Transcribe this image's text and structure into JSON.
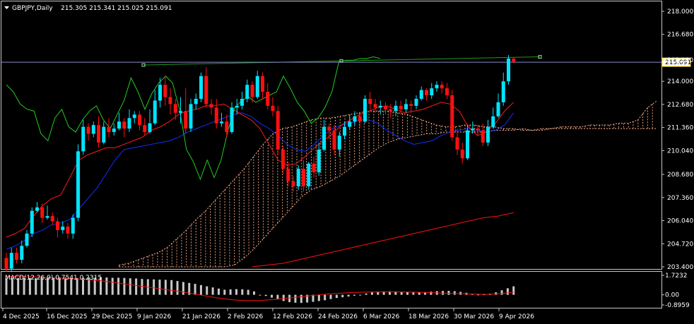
{
  "header": {
    "symbol": "GBPJPY,Daily",
    "ohlc": "215.305 215.341 215.025 215.091",
    "macd_label": "MACD(12,26,9) 0.7541 0.2315"
  },
  "colors": {
    "background": "#000000",
    "frame": "#c8c8c8",
    "bull": "#00e5ff",
    "bear": "#ff1010",
    "tenkan": "#ff1a1a",
    "kijun": "#1030ff",
    "chikou": "#22cc22",
    "cloud": "#ffb08a",
    "trendline": "#1f9a1f",
    "price_line": "#8a8ac8",
    "price_tag": "#ffd700",
    "macd_hist": "#c8c8c8",
    "macd_signal": "#ff1010",
    "ma200": "#ff1010"
  },
  "chart_data": [
    {
      "type": "candlestick",
      "title": "GBPJPY,Daily",
      "ylim": [
        203.4,
        218.0
      ],
      "y_ticks": [
        "218.000",
        "216.680",
        "215.220",
        "214.000",
        "212.680",
        "211.360",
        "210.040",
        "208.680",
        "207.360",
        "206.040",
        "204.720",
        "203.400"
      ],
      "current_price": "215.091",
      "x_ticks": [
        "4 Dec 2025",
        "16 Dec 2025",
        "29 Dec 2025",
        "9 Jan 2026",
        "21 Jan 2026",
        "2 Feb 2026",
        "12 Feb 2026",
        "24 Feb 2026",
        "6 Mar 2026",
        "18 Mar 2026",
        "30 Mar 2026",
        "9 Apr 2026"
      ],
      "candles": [
        [
          203.9,
          203.3,
          204.2,
          203.1
        ],
        [
          203.3,
          204.2,
          204.5,
          203.1
        ],
        [
          204.2,
          203.8,
          204.5,
          203.6
        ],
        [
          203.8,
          204.6,
          204.9,
          203.6
        ],
        [
          204.6,
          205.3,
          205.5,
          204.5
        ],
        [
          205.3,
          206.6,
          206.8,
          205.1
        ],
        [
          206.6,
          206.8,
          207.1,
          206.5
        ],
        [
          206.8,
          206.2,
          207.0,
          205.9
        ],
        [
          206.2,
          206.3,
          206.9,
          206.1
        ],
        [
          206.3,
          206.0,
          206.5,
          205.8
        ],
        [
          206.0,
          205.5,
          206.2,
          205.1
        ],
        [
          205.5,
          205.7,
          206.0,
          205.3
        ],
        [
          205.7,
          205.3,
          205.9,
          205.0
        ],
        [
          205.3,
          206.2,
          206.4,
          205.0
        ],
        [
          206.2,
          210.0,
          210.4,
          206.0
        ],
        [
          210.0,
          211.4,
          211.8,
          209.8
        ],
        [
          211.4,
          211.0,
          211.6,
          210.6
        ],
        [
          211.0,
          211.5,
          211.7,
          210.8
        ],
        [
          211.5,
          210.5,
          212.0,
          210.2
        ],
        [
          210.5,
          211.4,
          211.7,
          210.4
        ],
        [
          211.4,
          211.1,
          211.9,
          210.8
        ],
        [
          211.1,
          211.3,
          211.6,
          210.9
        ],
        [
          211.3,
          211.7,
          212.2,
          211.2
        ],
        [
          211.7,
          211.3,
          211.9,
          210.8
        ],
        [
          211.3,
          211.9,
          212.4,
          211.1
        ],
        [
          211.9,
          212.1,
          212.3,
          211.6
        ],
        [
          212.1,
          211.5,
          212.3,
          211.2
        ],
        [
          211.5,
          211.1,
          211.9,
          210.9
        ],
        [
          211.1,
          211.6,
          212.4,
          211.0
        ],
        [
          211.6,
          212.9,
          213.5,
          211.5
        ],
        [
          212.9,
          213.8,
          214.2,
          212.5
        ],
        [
          213.8,
          213.1,
          214.3,
          212.6
        ],
        [
          213.1,
          212.7,
          213.6,
          212.1
        ],
        [
          212.7,
          212.2,
          213.0,
          211.8
        ],
        [
          212.2,
          212.3,
          213.1,
          211.6
        ],
        [
          212.3,
          211.3,
          213.6,
          211.0
        ],
        [
          211.3,
          212.7,
          213.0,
          211.1
        ],
        [
          212.7,
          213.0,
          213.3,
          212.4
        ],
        [
          213.0,
          214.3,
          214.5,
          212.8
        ],
        [
          214.3,
          212.7,
          214.8,
          212.5
        ],
        [
          212.7,
          212.5,
          213.0,
          212.1
        ],
        [
          212.5,
          211.6,
          213.0,
          211.3
        ],
        [
          211.6,
          211.7,
          212.2,
          211.4
        ],
        [
          211.7,
          211.1,
          212.1,
          210.8
        ],
        [
          211.1,
          212.5,
          212.8,
          211.0
        ],
        [
          212.5,
          212.6,
          213.0,
          212.1
        ],
        [
          212.6,
          213.0,
          213.4,
          212.4
        ],
        [
          213.0,
          213.8,
          214.1,
          212.8
        ],
        [
          213.8,
          213.1,
          214.0,
          212.8
        ],
        [
          213.1,
          214.3,
          214.6,
          213.0
        ],
        [
          214.3,
          213.4,
          214.5,
          213.0
        ],
        [
          213.4,
          212.6,
          213.9,
          212.4
        ],
        [
          212.6,
          212.3,
          213.1,
          212.0
        ],
        [
          212.3,
          210.1,
          212.6,
          209.8
        ],
        [
          210.1,
          209.0,
          210.3,
          208.7
        ],
        [
          209.0,
          208.3,
          209.4,
          208.0
        ],
        [
          208.3,
          208.0,
          208.6,
          207.7
        ],
        [
          208.0,
          209.0,
          209.2,
          207.8
        ],
        [
          209.0,
          208.0,
          209.5,
          207.7
        ],
        [
          208.0,
          209.3,
          209.4,
          207.8
        ],
        [
          209.3,
          208.8,
          209.7,
          208.5
        ],
        [
          208.8,
          210.1,
          210.5,
          208.6
        ],
        [
          210.1,
          211.4,
          211.8,
          210.0
        ],
        [
          211.4,
          211.2,
          211.6,
          210.7
        ],
        [
          211.2,
          210.1,
          211.5,
          209.8
        ],
        [
          210.1,
          210.9,
          211.1,
          209.7
        ],
        [
          210.9,
          211.4,
          211.7,
          210.7
        ],
        [
          211.4,
          211.7,
          212.1,
          211.2
        ],
        [
          211.7,
          212.0,
          212.3,
          211.5
        ],
        [
          212.0,
          211.7,
          212.2,
          211.4
        ],
        [
          211.7,
          213.0,
          213.2,
          211.6
        ],
        [
          213.0,
          212.7,
          213.4,
          212.4
        ],
        [
          212.7,
          212.5,
          213.0,
          212.2
        ],
        [
          212.5,
          212.6,
          212.9,
          212.1
        ],
        [
          212.6,
          212.4,
          212.8,
          212.1
        ],
        [
          212.4,
          212.3,
          212.7,
          211.9
        ],
        [
          212.3,
          212.6,
          212.9,
          212.0
        ],
        [
          212.6,
          212.4,
          212.9,
          212.1
        ],
        [
          212.4,
          212.7,
          213.0,
          212.2
        ],
        [
          212.7,
          212.6,
          212.9,
          212.2
        ],
        [
          212.6,
          213.0,
          213.2,
          212.4
        ],
        [
          213.0,
          213.5,
          213.7,
          212.9
        ],
        [
          213.5,
          213.2,
          213.6,
          212.9
        ],
        [
          213.2,
          213.6,
          213.9,
          213.0
        ],
        [
          213.6,
          213.8,
          214.0,
          213.4
        ],
        [
          213.8,
          213.6,
          214.0,
          213.3
        ],
        [
          213.6,
          213.2,
          213.9,
          213.0
        ],
        [
          213.2,
          210.8,
          213.5,
          210.6
        ],
        [
          210.8,
          210.1,
          211.3,
          209.8
        ],
        [
          210.1,
          209.6,
          210.5,
          209.3
        ],
        [
          209.6,
          211.2,
          211.5,
          209.5
        ],
        [
          211.2,
          211.3,
          211.7,
          211.0
        ],
        [
          211.3,
          211.2,
          211.5,
          210.9
        ],
        [
          211.2,
          210.5,
          211.6,
          210.3
        ],
        [
          210.5,
          211.4,
          211.8,
          210.3
        ],
        [
          211.4,
          212.0,
          212.5,
          211.3
        ],
        [
          212.0,
          212.8,
          213.3,
          211.9
        ],
        [
          212.8,
          214.0,
          214.5,
          212.6
        ],
        [
          214.0,
          215.3,
          215.5,
          213.8
        ],
        [
          215.3,
          215.09,
          215.34,
          215.02
        ]
      ],
      "indicators": {
        "tenkan_sen": [
          205.1,
          205.3,
          205.6,
          206.3,
          206.9,
          207.3,
          207.5,
          208.5,
          209.5,
          209.8,
          210.0,
          210.2,
          210.2,
          210.4,
          210.6,
          210.8,
          211.2,
          211.4,
          211.7,
          212.1,
          212.3,
          212.4,
          212.6,
          212.6,
          212.7,
          212.4,
          212.1,
          211.8,
          211.3,
          210.4,
          209.5,
          209.2,
          209.3,
          209.7,
          210.2,
          210.6,
          211.0,
          211.5,
          211.8,
          212.1,
          212.3,
          212.5,
          212.6,
          212.4,
          212.2,
          212.3,
          212.4,
          212.6,
          212.8,
          212.7,
          212.3,
          211.4,
          210.9,
          211.1,
          211.6,
          212.3,
          212.8
        ],
        "kijun_sen": [
          204.4,
          204.6,
          204.9,
          205.3,
          205.5,
          205.8,
          205.9,
          206.1,
          206.7,
          207.3,
          207.9,
          208.7,
          209.5,
          210.1,
          210.2,
          210.3,
          210.4,
          210.5,
          210.6,
          210.8,
          211.1,
          211.3,
          211.5,
          211.7,
          211.9,
          212.1,
          212.2,
          212.0,
          211.6,
          211.3,
          210.9,
          210.4,
          210.1,
          210.0,
          210.4,
          210.9,
          211.3,
          211.5,
          211.6,
          211.8,
          211.8,
          211.6,
          211.2,
          210.9,
          210.6,
          210.4,
          210.5,
          210.6,
          210.9,
          211.1,
          211.2,
          211.3,
          211.2,
          211.1,
          211.2,
          211.5,
          212.2
        ],
        "cloud_top": [
          203.5,
          203.6,
          203.8,
          204.0,
          204.2,
          204.5,
          205.0,
          205.5,
          206.1,
          206.6,
          207.2,
          207.8,
          208.4,
          209.0,
          209.7,
          210.4,
          211.0,
          211.3,
          211.4,
          211.6,
          211.8,
          211.9,
          211.9,
          212.0,
          212.1,
          212.2,
          212.3,
          212.3,
          212.3,
          212.2,
          212.1,
          211.9,
          211.7,
          211.5,
          211.4,
          211.4,
          211.5,
          211.5,
          211.4,
          211.4,
          211.3,
          211.3,
          211.2,
          211.2,
          211.3,
          211.3,
          211.4,
          211.4,
          211.4,
          211.5,
          211.5,
          211.5,
          211.6,
          211.6,
          211.8,
          212.5,
          212.9
        ],
        "cloud_bottom": [
          203.4,
          203.4,
          203.4,
          203.4,
          203.4,
          203.4,
          203.4,
          203.4,
          203.4,
          203.4,
          203.4,
          203.4,
          203.5,
          203.9,
          204.4,
          205.0,
          205.6,
          206.2,
          206.8,
          207.4,
          207.8,
          208.0,
          208.3,
          208.6,
          209.0,
          209.4,
          209.8,
          210.2,
          210.5,
          210.7,
          210.8,
          210.9,
          211.0,
          211.0,
          211.1,
          211.1,
          211.1,
          211.1,
          211.1,
          211.2,
          211.2,
          211.2,
          211.3,
          211.2,
          211.2,
          211.3,
          211.3,
          211.3,
          211.3,
          211.3,
          211.3,
          211.3,
          211.3,
          211.3,
          211.3,
          211.3,
          211.3
        ],
        "chikou_span": [
          213.8,
          213.4,
          212.7,
          212.4,
          212.3,
          211.0,
          210.6,
          211.9,
          212.4,
          211.4,
          211.1,
          211.8,
          212.3,
          212.6,
          211.8,
          211.3,
          212.1,
          212.9,
          214.2,
          213.4,
          212.4,
          213.3,
          213.9,
          214.3,
          213.9,
          212.4,
          210.1,
          209.4,
          208.4,
          209.5,
          208.5,
          209.5,
          211.2,
          212.5,
          212.9,
          213.1,
          212.8,
          213.0,
          213.2,
          213.4,
          214.3,
          213.6,
          212.8,
          212.3,
          211.6,
          211.9,
          212.5,
          213.4,
          215.1,
          215.2,
          215.2,
          215.3,
          215.3,
          215.4,
          215.3
        ],
        "moving_average": [
          203.4,
          203.5,
          203.6,
          203.8,
          204.0,
          204.2,
          204.4,
          204.6,
          204.8,
          205.0,
          205.2,
          205.4,
          205.6,
          205.8,
          206.0,
          206.2,
          206.3,
          206.5
        ]
      },
      "trendline": {
        "start": 214.93,
        "end": 215.4
      }
    },
    {
      "type": "bar",
      "title": "MACD(12,26,9) 0.7541 0.2315",
      "ylim": [
        -0.8959,
        1.7232
      ],
      "y_ticks": [
        "1.7232",
        "0.00",
        "-0.8959"
      ],
      "values": [
        1.45,
        1.45,
        1.47,
        1.47,
        1.48,
        1.46,
        1.5,
        1.53,
        1.52,
        1.55,
        1.52,
        1.48,
        1.48,
        1.5,
        1.52,
        1.51,
        1.55,
        1.53,
        1.5,
        1.51,
        1.49,
        1.46,
        1.44,
        1.4,
        1.38,
        1.36,
        1.34,
        1.32,
        1.3,
        1.22,
        1.13,
        1.05,
        0.97,
        0.86,
        0.75,
        0.65,
        0.55,
        0.45,
        0.48,
        0.5,
        0.49,
        0.44,
        0.3,
        0.0,
        -0.1,
        -0.25,
        -0.4,
        -0.55,
        -0.65,
        -0.7,
        -0.72,
        -0.68,
        -0.62,
        -0.55,
        -0.48,
        -0.38,
        -0.28,
        -0.22,
        -0.15,
        -0.08,
        0.0,
        0.12,
        0.22,
        0.28,
        0.3,
        0.31,
        0.3,
        0.26,
        0.24,
        0.22,
        0.2,
        0.24,
        0.28,
        0.32,
        0.34,
        0.35,
        0.32,
        0.26,
        0.18,
        0.1,
        0.02,
        0.04,
        0.1,
        0.22,
        0.4,
        0.58,
        0.75
      ],
      "signal": [
        1.62,
        1.61,
        1.58,
        1.52,
        1.48,
        1.42,
        1.35,
        1.25,
        1.1,
        0.94,
        0.78,
        0.62,
        0.45,
        0.3,
        0.1,
        -0.12,
        -0.3,
        -0.45,
        -0.52,
        -0.5,
        -0.42,
        -0.3,
        -0.18,
        -0.05,
        0.06,
        0.14,
        0.2,
        0.24,
        0.26,
        0.26,
        0.25,
        0.22,
        0.18,
        0.14,
        0.1,
        0.06,
        0.04,
        0.1,
        0.23
      ]
    }
  ]
}
